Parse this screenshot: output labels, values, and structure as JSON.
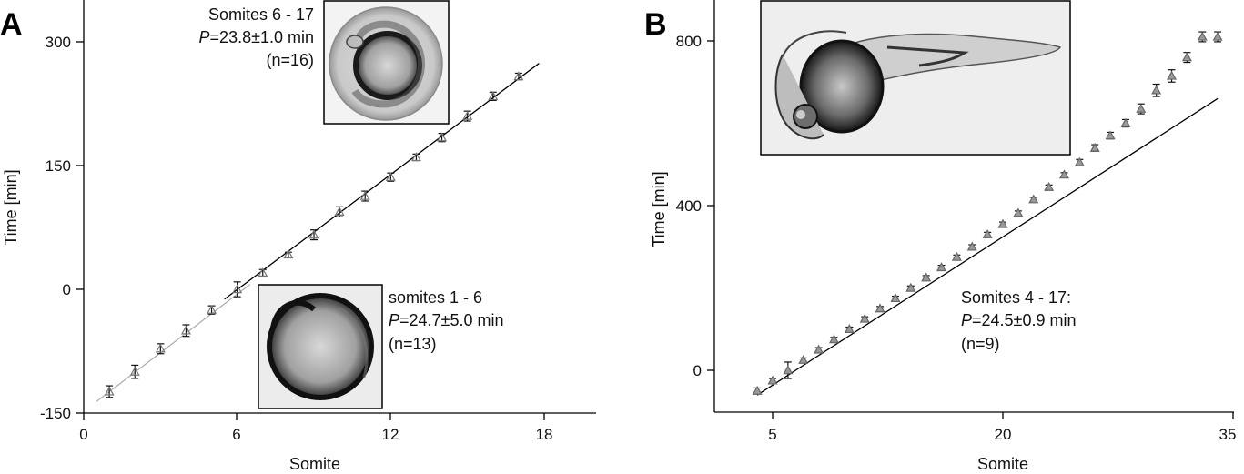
{
  "chart_data": [
    {
      "panel": "A",
      "type": "scatter",
      "xlabel": "Somite",
      "ylabel": "Time [min]",
      "xlim": [
        0,
        20
      ],
      "ylim": [
        -150,
        345
      ],
      "xticks": [
        "0",
        "6",
        "12",
        "18"
      ],
      "yticks": [
        "-150",
        "0",
        "150",
        "300"
      ],
      "series": [
        {
          "marker": "open-triangle",
          "color": "#777777",
          "x": [
            1,
            2,
            3,
            4,
            5,
            6,
            7,
            8,
            9,
            10,
            11,
            12,
            13,
            14,
            15,
            16,
            17
          ],
          "y": [
            -124,
            -100,
            -72,
            -50,
            -25,
            0,
            20,
            42,
            66,
            94,
            113,
            136,
            160,
            184,
            210,
            234,
            258
          ],
          "err": [
            7,
            8,
            6,
            7,
            5,
            9,
            4,
            3,
            6,
            6,
            6,
            5,
            4,
            5,
            6,
            5,
            4
          ]
        }
      ],
      "fits": [
        {
          "x": [
            0.5,
            6.5
          ],
          "y": [
            -136,
            6
          ],
          "color": "#aaaaaa"
        },
        {
          "x": [
            5.5,
            17.8
          ],
          "y": [
            -12,
            274
          ],
          "color": "#000000"
        }
      ],
      "annotations": {
        "top": {
          "line1": "Somites 6 - 17",
          "p_prefix": "P",
          "line2": "=23.8±1.0 min",
          "line3": "(n=16)"
        },
        "bottom": {
          "line1": "somites 1 - 6",
          "p_prefix": "P",
          "line2": "=24.7±5.0 min",
          "line3": "(n=13)"
        }
      }
    },
    {
      "panel": "B",
      "type": "scatter",
      "xlabel": "Somite",
      "ylabel": "Time [min]",
      "xlim": [
        0.4,
        35
      ],
      "ylim": [
        -100,
        900
      ],
      "xticks": [
        "5",
        "20",
        "35"
      ],
      "yticks": [
        "0",
        "400",
        "800"
      ],
      "series": [
        {
          "marker": "filled-triangle",
          "color": "#999999",
          "x": [
            4,
            5,
            6,
            7,
            8,
            9,
            10,
            11,
            12,
            13,
            14,
            15,
            16,
            17,
            18,
            19,
            20,
            21,
            22,
            23,
            24,
            25,
            26,
            27,
            28,
            29,
            30,
            31,
            32,
            33,
            34
          ],
          "y": [
            -50,
            -25,
            0,
            25,
            50,
            75,
            100,
            125,
            150,
            175,
            200,
            225,
            250,
            275,
            300,
            330,
            355,
            382,
            415,
            445,
            475,
            505,
            540,
            570,
            600,
            635,
            680,
            715,
            760,
            810,
            810
          ],
          "err": [
            7,
            5,
            20,
            5,
            5,
            5,
            5,
            5,
            5,
            5,
            5,
            5,
            5,
            5,
            5,
            5,
            5,
            5,
            5,
            5,
            5,
            7,
            8,
            8,
            9,
            12,
            15,
            15,
            12,
            12,
            12
          ]
        }
      ],
      "fits": [
        {
          "x": [
            4,
            34
          ],
          "y": [
            -60,
            660
          ],
          "color": "#000000"
        }
      ],
      "annotations": {
        "main": {
          "line1": "Somites 4 - 17:",
          "p_prefix": "P",
          "line2": "=24.5±0.9 min",
          "line3": "(n=9)"
        }
      }
    }
  ]
}
